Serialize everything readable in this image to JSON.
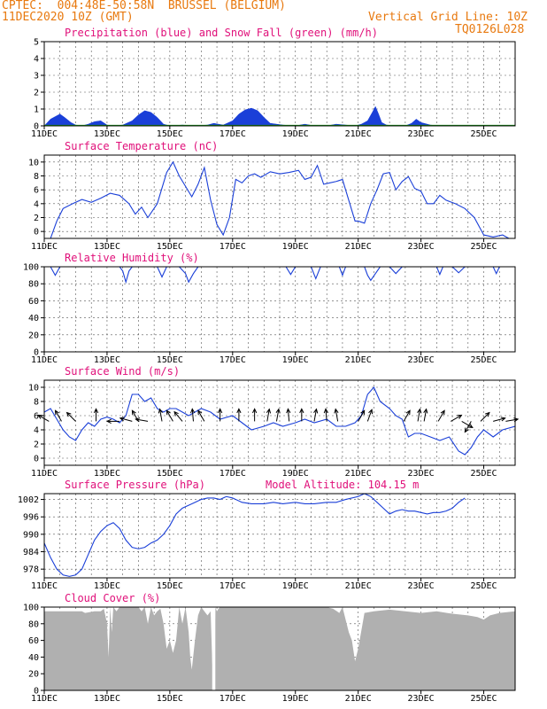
{
  "header": {
    "line1_left": "CPTEC:  004:48E-50:58N  BRUSSEL (BELGIUM)",
    "line2_left": "11DEC2020 10Z (GMT)",
    "line2_right": "Vertical Grid Line: 10Z",
    "line3_right": "TQ0126L028"
  },
  "colors": {
    "header": "#e8790f",
    "title": "#e0107a",
    "series": "#1a3fd8",
    "snow": "#1aa01a",
    "cloud": "#b0b0b0",
    "grid": "#555555"
  },
  "chart_data": [
    {
      "id": "precip",
      "type": "area",
      "title": "Precipitation (blue) and Snow Fall (green) (mm/h)",
      "ylim": [
        0,
        5
      ],
      "yticks": [
        0,
        1,
        2,
        3,
        4,
        5
      ],
      "xlabels": [
        "11DEC",
        "13DEC",
        "15DEC",
        "17DEC",
        "19DEC",
        "21DEC",
        "23DEC",
        "25DEC"
      ],
      "x_label_days": [
        0,
        2,
        4,
        6,
        8,
        10,
        12,
        14
      ],
      "series": [
        {
          "x": [
            0,
            0.2,
            0.35,
            0.5,
            0.65,
            0.85,
            1.0,
            1.2,
            1.4,
            1.6,
            1.8,
            2.0,
            2.2,
            2.5,
            2.8,
            3.0,
            3.2,
            3.4,
            3.6,
            3.8,
            4.0,
            4.4,
            4.8,
            5.2,
            5.4,
            5.7,
            6.0,
            6.2,
            6.4,
            6.6,
            6.8,
            7.0,
            7.2,
            7.6,
            8.0,
            8.3,
            8.6,
            9.0,
            9.3,
            9.6,
            9.9,
            10.1,
            10.3,
            10.45,
            10.55,
            10.65,
            10.75,
            10.9,
            11.2,
            11.5,
            11.7,
            11.85,
            12.0,
            12.3,
            12.6,
            13.0,
            13.5,
            14.0,
            14.5,
            15.0
          ],
          "y": [
            0,
            0.4,
            0.55,
            0.7,
            0.5,
            0.2,
            0.05,
            0,
            0.1,
            0.25,
            0.3,
            0.05,
            0,
            0.05,
            0.3,
            0.65,
            0.9,
            0.8,
            0.5,
            0.1,
            0,
            0.05,
            0,
            0.05,
            0.15,
            0.05,
            0.3,
            0.7,
            0.95,
            1.05,
            0.9,
            0.5,
            0.15,
            0.05,
            0,
            0.1,
            0,
            0,
            0.1,
            0.05,
            0,
            0.1,
            0.3,
            0.8,
            1.15,
            0.7,
            0.2,
            0.05,
            0,
            0,
            0.15,
            0.4,
            0.2,
            0.05,
            0,
            0,
            0,
            0,
            0,
            0
          ]
        }
      ],
      "snow": {
        "x": [
          0,
          15
        ],
        "y": [
          0.02,
          0.02
        ]
      }
    },
    {
      "id": "temp",
      "type": "line",
      "title": "Surface Temperature (nC)",
      "ylim": [
        -1,
        11
      ],
      "yticks": [
        0,
        2,
        4,
        6,
        8,
        10
      ],
      "xlabels": [
        "11DEC",
        "13DEC",
        "15DEC",
        "17DEC",
        "19DEC",
        "21DEC",
        "23DEC",
        "25DEC"
      ],
      "x_label_days": [
        0,
        2,
        4,
        6,
        8,
        10,
        12,
        14
      ],
      "series": [
        {
          "x": [
            0.2,
            0.4,
            0.6,
            0.9,
            1.2,
            1.5,
            1.8,
            2.1,
            2.4,
            2.7,
            2.9,
            3.1,
            3.3,
            3.6,
            3.9,
            4.1,
            4.3,
            4.5,
            4.7,
            4.9,
            5.1,
            5.3,
            5.5,
            5.7,
            5.9,
            6.1,
            6.3,
            6.5,
            6.7,
            6.9,
            7.2,
            7.5,
            7.8,
            8.1,
            8.3,
            8.5,
            8.7,
            8.9,
            9.1,
            9.3,
            9.5,
            9.7,
            9.9,
            10.0,
            10.2,
            10.4,
            10.6,
            10.8,
            11.0,
            11.2,
            11.4,
            11.6,
            11.8,
            12.0,
            12.2,
            12.4,
            12.6,
            12.8,
            13.1,
            13.4,
            13.7,
            14.0,
            14.3,
            14.6,
            14.8,
            15.0
          ],
          "y": [
            -1,
            1.5,
            3.3,
            4,
            4.6,
            4.2,
            4.8,
            5.5,
            5.2,
            4,
            2.5,
            3.5,
            2,
            4,
            8.5,
            10,
            8,
            6.5,
            5,
            6.8,
            9.2,
            4.5,
            1,
            -0.5,
            2,
            7.5,
            7,
            8,
            8.3,
            7.8,
            8.6,
            8.3,
            8.5,
            8.8,
            7.5,
            7.8,
            9.5,
            6.8,
            7,
            7.2,
            7.5,
            4.5,
            1.5,
            1.5,
            1.2,
            4,
            6,
            8.3,
            8.5,
            6,
            7.2,
            7.9,
            6.2,
            5.8,
            4,
            4,
            5.2,
            4.5,
            4,
            3.3,
            2,
            -0.5,
            -0.8,
            -0.5,
            -1,
            -1
          ]
        }
      ]
    },
    {
      "id": "rh",
      "type": "line",
      "title": "Relative Humidity (%)",
      "ylim": [
        0,
        100
      ],
      "yticks": [
        0,
        20,
        40,
        60,
        80,
        100
      ],
      "xlabels": [
        "11DEC",
        "13DEC",
        "15DEC",
        "17DEC",
        "19DEC",
        "21DEC",
        "23DEC",
        "25DEC"
      ],
      "x_label_days": [
        0,
        2,
        4,
        6,
        8,
        10,
        12,
        14
      ],
      "series": [
        {
          "x": [
            0,
            0.2,
            0.35,
            0.5,
            2.4,
            2.5,
            2.6,
            2.7,
            2.8,
            3.6,
            3.75,
            3.9,
            4.3,
            4.5,
            4.6,
            4.75,
            4.9,
            5.0,
            7.7,
            7.85,
            8.0,
            8.5,
            8.65,
            8.8,
            9.4,
            9.5,
            9.6,
            10.2,
            10.3,
            10.4,
            10.55,
            10.7,
            11.0,
            11.2,
            11.4,
            12.5,
            12.6,
            12.7,
            13.0,
            13.2,
            13.4,
            14.3,
            14.4,
            14.5,
            15.0
          ],
          "y": [
            100,
            100,
            90,
            100,
            100,
            95,
            82,
            95,
            100,
            100,
            88,
            100,
            100,
            92,
            82,
            92,
            100,
            100,
            100,
            91,
            100,
            100,
            86,
            100,
            100,
            90,
            100,
            100,
            90,
            84,
            92,
            100,
            100,
            92,
            100,
            100,
            91,
            100,
            100,
            93,
            100,
            100,
            92,
            100,
            100
          ]
        }
      ]
    },
    {
      "id": "wind",
      "type": "line",
      "title": "Surface Wind (m/s)",
      "ylim": [
        -1,
        11
      ],
      "yticks": [
        0,
        2,
        4,
        6,
        8,
        10
      ],
      "xlabels": [
        "11DEC",
        "13DEC",
        "15DEC",
        "17DEC",
        "19DEC",
        "21DEC",
        "23DEC",
        "25DEC"
      ],
      "x_label_days": [
        0,
        2,
        4,
        6,
        8,
        10,
        12,
        14
      ],
      "series": [
        {
          "x": [
            0,
            0.2,
            0.4,
            0.6,
            0.8,
            1.0,
            1.2,
            1.4,
            1.6,
            1.8,
            2.0,
            2.2,
            2.4,
            2.6,
            2.8,
            3.0,
            3.2,
            3.4,
            3.6,
            3.8,
            4.0,
            4.2,
            4.4,
            4.6,
            4.8,
            5.0,
            5.3,
            5.6,
            6.0,
            6.3,
            6.6,
            7.0,
            7.3,
            7.6,
            8.0,
            8.3,
            8.6,
            9.0,
            9.3,
            9.6,
            9.9,
            10.1,
            10.3,
            10.5,
            10.7,
            11.0,
            11.2,
            11.4,
            11.6,
            11.8,
            12.0,
            12.3,
            12.6,
            12.9,
            13.2,
            13.4,
            13.6,
            13.8,
            14.0,
            14.3,
            14.6,
            15.0
          ],
          "y": [
            6.5,
            7,
            5.5,
            4,
            3,
            2.5,
            4,
            5,
            4.5,
            5.5,
            5.8,
            5.5,
            5,
            6,
            9,
            9,
            8,
            8.5,
            7,
            6.5,
            7,
            7,
            6.5,
            6,
            6.5,
            7,
            6.5,
            5.5,
            6,
            5,
            4,
            4.5,
            5,
            4.5,
            5,
            5.5,
            5,
            5.5,
            4.5,
            4.5,
            5,
            6,
            9,
            10,
            8,
            7,
            6,
            5.5,
            3,
            3.5,
            3.5,
            3,
            2.5,
            3,
            1,
            0.5,
            1.5,
            3,
            4,
            3,
            4,
            4.5
          ]
        }
      ],
      "arrows": [
        {
          "x": 0.15,
          "dir": 150
        },
        {
          "x": 0.55,
          "dir": 120
        },
        {
          "x": 1.0,
          "dir": 135
        },
        {
          "x": 1.65,
          "dir": 90
        },
        {
          "x": 2.4,
          "dir": 180
        },
        {
          "x": 2.8,
          "dir": 165
        },
        {
          "x": 3.0,
          "dir": 120
        },
        {
          "x": 3.3,
          "dir": 170
        },
        {
          "x": 3.75,
          "dir": 100
        },
        {
          "x": 4.1,
          "dir": 120
        },
        {
          "x": 4.4,
          "dir": 130
        },
        {
          "x": 4.75,
          "dir": 95
        },
        {
          "x": 5.1,
          "dir": 120
        },
        {
          "x": 5.6,
          "dir": 90
        },
        {
          "x": 6.2,
          "dir": 90
        },
        {
          "x": 6.7,
          "dir": 90
        },
        {
          "x": 7.1,
          "dir": 80
        },
        {
          "x": 7.4,
          "dir": 80
        },
        {
          "x": 7.8,
          "dir": 95
        },
        {
          "x": 8.2,
          "dir": 90
        },
        {
          "x": 8.6,
          "dir": 80
        },
        {
          "x": 9.0,
          "dir": 95
        },
        {
          "x": 9.35,
          "dir": 100
        },
        {
          "x": 10.0,
          "dir": 60
        },
        {
          "x": 10.3,
          "dir": 70
        },
        {
          "x": 11.45,
          "dir": 60
        },
        {
          "x": 11.9,
          "dir": 80
        },
        {
          "x": 12.1,
          "dir": 80
        },
        {
          "x": 12.55,
          "dir": 60
        },
        {
          "x": 12.95,
          "dir": 30
        },
        {
          "x": 13.3,
          "dir": 330
        },
        {
          "x": 13.6,
          "dir": 240
        },
        {
          "x": 13.9,
          "dir": 45
        },
        {
          "x": 14.3,
          "dir": 15
        },
        {
          "x": 14.7,
          "dir": 10
        }
      ]
    },
    {
      "id": "pressure",
      "type": "line",
      "title": "Surface Pressure (hPa)",
      "subtitle": "Model Altitude: 104.15 m",
      "ylim": [
        975,
        1004
      ],
      "yticks": [
        978,
        984,
        990,
        996,
        1002
      ],
      "xlabels": [
        "11DEC",
        "13DEC",
        "15DEC",
        "17DEC",
        "19DEC",
        "21DEC",
        "23DEC",
        "25DEC"
      ],
      "x_label_days": [
        0,
        2,
        4,
        6,
        8,
        10,
        12,
        14
      ],
      "series": [
        {
          "x": [
            0,
            0.2,
            0.4,
            0.6,
            0.8,
            1.0,
            1.2,
            1.4,
            1.6,
            1.8,
            2.0,
            2.2,
            2.4,
            2.6,
            2.8,
            3.0,
            3.2,
            3.4,
            3.6,
            3.8,
            4.0,
            4.2,
            4.4,
            4.6,
            4.8,
            5.0,
            5.2,
            5.4,
            5.6,
            5.8,
            6.0,
            6.3,
            6.6,
            7.0,
            7.3,
            7.6,
            8.0,
            8.3,
            8.6,
            9.0,
            9.3,
            9.6,
            10.0,
            10.2,
            10.4,
            10.6,
            10.8,
            11.0,
            11.2,
            11.4,
            11.6,
            11.8,
            12.0,
            12.2,
            12.4,
            12.6,
            12.8,
            13.0,
            13.2,
            13.4
          ],
          "y": [
            987,
            982,
            978,
            976,
            975.5,
            976,
            978,
            983,
            988,
            991,
            993,
            994,
            992,
            988,
            985.5,
            985,
            985.5,
            987,
            988,
            990,
            993,
            997,
            999,
            1000,
            1001,
            1002,
            1002.5,
            1002.5,
            1002,
            1003,
            1002.5,
            1001,
            1000.5,
            1000.5,
            1001,
            1000.5,
            1001,
            1000.5,
            1000.5,
            1001,
            1001,
            1002,
            1003,
            1004,
            1003,
            1001,
            999,
            997,
            998,
            998.5,
            998,
            998,
            997.5,
            997,
            997.5,
            997.5,
            998,
            999,
            1001,
            1002.5
          ]
        }
      ]
    },
    {
      "id": "cloud",
      "type": "area",
      "title": "Cloud Cover (%)",
      "ylim": [
        0,
        100
      ],
      "yticks": [
        0,
        20,
        40,
        60,
        80,
        100
      ],
      "xlabels": [
        "11DEC",
        "13DEC",
        "15DEC",
        "17DEC",
        "19DEC",
        "21DEC",
        "23DEC",
        "25DEC"
      ],
      "x_label_days": [
        0,
        2,
        4,
        6,
        8,
        10,
        12,
        14
      ],
      "series": [
        {
          "x": [
            0,
            1.2,
            1.3,
            1.6,
            1.8,
            1.9,
            2.0,
            2.05,
            2.1,
            2.15,
            2.2,
            2.3,
            2.4,
            2.5,
            3.0,
            3.1,
            3.2,
            3.3,
            3.4,
            3.5,
            3.6,
            3.7,
            3.8,
            3.9,
            4.0,
            4.1,
            4.2,
            4.3,
            4.4,
            4.5,
            4.6,
            4.65,
            4.7,
            4.8,
            4.9,
            5.0,
            5.1,
            5.2,
            5.3,
            5.35,
            5.4,
            5.45,
            5.5,
            5.55,
            5.6,
            5.8,
            6.0,
            6.2,
            6.6,
            7.0,
            7.5,
            8.0,
            8.5,
            9.0,
            9.2,
            9.4,
            9.5,
            9.6,
            9.7,
            9.8,
            9.9,
            10.0,
            10.2,
            10.5,
            11.0,
            11.5,
            12.0,
            12.5,
            13.0,
            13.5,
            13.8,
            14.0,
            14.2,
            14.5,
            15.0
          ],
          "y": [
            95,
            95,
            93,
            95,
            95,
            98,
            80,
            40,
            100,
            70,
            100,
            95,
            100,
            100,
            100,
            95,
            100,
            80,
            100,
            90,
            95,
            98,
            80,
            50,
            60,
            45,
            60,
            100,
            80,
            100,
            70,
            40,
            25,
            60,
            90,
            100,
            95,
            90,
            95,
            35,
            3,
            100,
            95,
            98,
            100,
            100,
            100,
            100,
            100,
            100,
            100,
            100,
            100,
            100,
            98,
            93,
            100,
            85,
            70,
            60,
            35,
            50,
            93,
            95,
            97,
            95,
            93,
            95,
            92,
            90,
            88,
            85,
            90,
            93,
            95
          ]
        }
      ],
      "gap": {
        "x_start": 5.35,
        "x_end": 5.45
      }
    }
  ]
}
